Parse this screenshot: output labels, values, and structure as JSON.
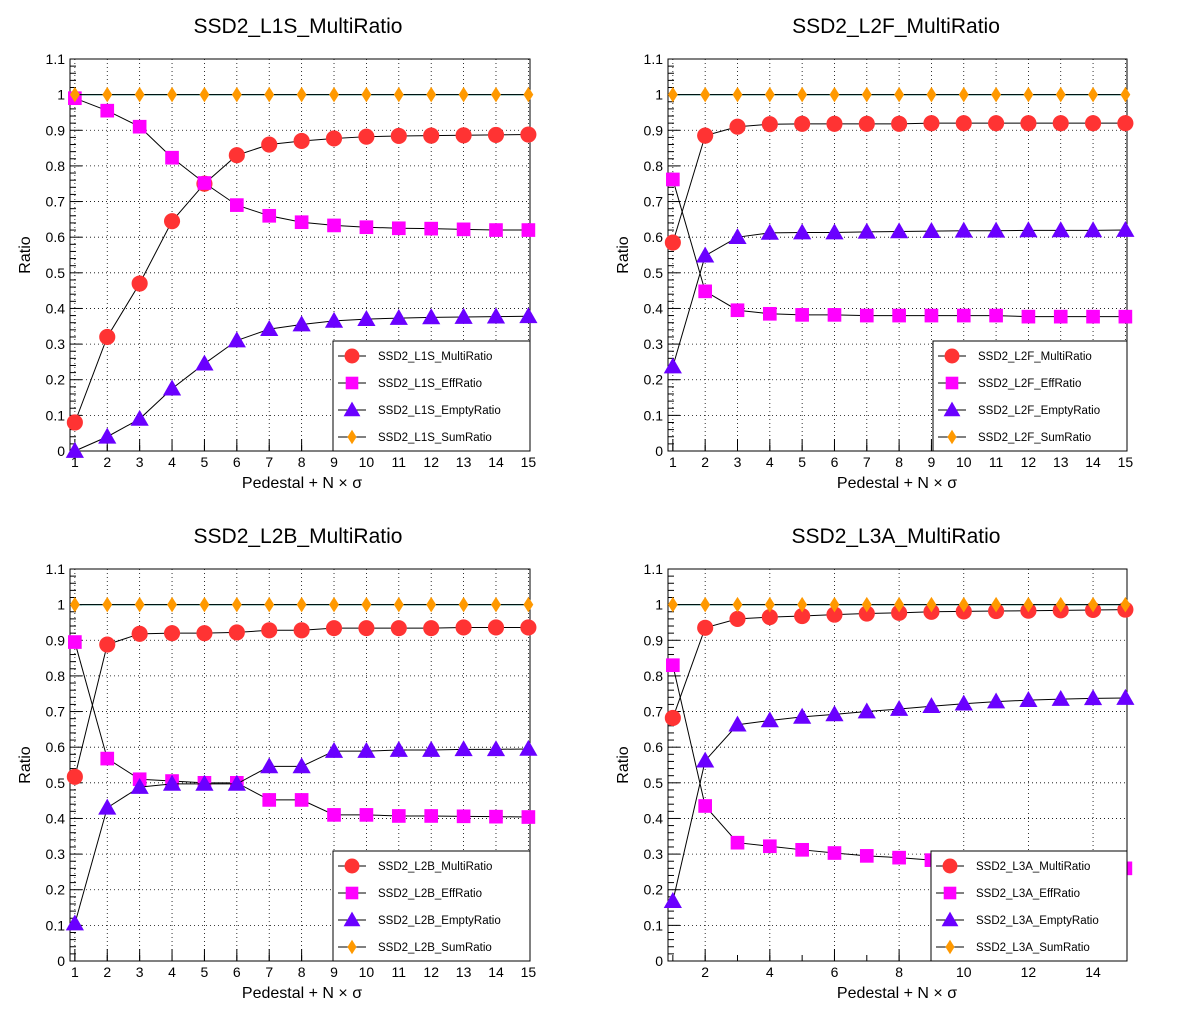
{
  "chart_data": [
    {
      "type": "line",
      "title": "SSD2_L1S_MultiRatio",
      "xlabel": "Pedestal + N × σ",
      "ylabel": "Ratio",
      "xlim": [
        0.85,
        15.05
      ],
      "ylim": [
        0,
        1.1
      ],
      "x_ticks": [
        "1",
        "2",
        "3",
        "4",
        "5",
        "6",
        "7",
        "8",
        "9",
        "10",
        "11",
        "12",
        "13",
        "14",
        "15"
      ],
      "y_ticks": [
        "0",
        "0.1",
        "0.2",
        "0.3",
        "0.4",
        "0.5",
        "0.6",
        "0.7",
        "0.8",
        "0.9",
        "1",
        "1.1"
      ],
      "grid": true,
      "legend_position": "bottom-right",
      "x": [
        1,
        2,
        3,
        4,
        5,
        6,
        7,
        8,
        9,
        10,
        11,
        12,
        13,
        14,
        15
      ],
      "series": [
        {
          "name": "SSD2_L1S_MultiRatio",
          "color": "#ff3333",
          "marker": "circle",
          "values": [
            0.08,
            0.32,
            0.47,
            0.645,
            0.75,
            0.83,
            0.86,
            0.87,
            0.877,
            0.882,
            0.884,
            0.885,
            0.886,
            0.887,
            0.888
          ]
        },
        {
          "name": "SSD2_L1S_EffRatio",
          "color": "#ff00ff",
          "marker": "square",
          "values": [
            0.99,
            0.955,
            0.91,
            0.823,
            0.752,
            0.69,
            0.66,
            0.642,
            0.633,
            0.628,
            0.625,
            0.624,
            0.622,
            0.62,
            0.62
          ]
        },
        {
          "name": "SSD2_L1S_EmptyRatio",
          "color": "#6a00ff",
          "marker": "triangle",
          "values": [
            0.0,
            0.04,
            0.09,
            0.175,
            0.245,
            0.31,
            0.342,
            0.355,
            0.365,
            0.37,
            0.373,
            0.375,
            0.376,
            0.377,
            0.378
          ]
        },
        {
          "name": "SSD2_L1S_SumRatio",
          "color": "#ff9900",
          "marker": "diamond",
          "values": [
            1,
            1,
            1,
            1,
            1,
            1,
            1,
            1,
            1,
            1,
            1,
            1,
            1,
            1,
            1
          ]
        }
      ]
    },
    {
      "type": "line",
      "title": "SSD2_L2F_MultiRatio",
      "xlabel": "Pedestal + N × σ",
      "ylabel": "Ratio",
      "xlim": [
        0.85,
        15.05
      ],
      "ylim": [
        0,
        1.1
      ],
      "x_ticks": [
        "1",
        "2",
        "3",
        "4",
        "5",
        "6",
        "7",
        "8",
        "9",
        "10",
        "11",
        "12",
        "13",
        "14",
        "15"
      ],
      "y_ticks": [
        "0",
        "0.1",
        "0.2",
        "0.3",
        "0.4",
        "0.5",
        "0.6",
        "0.7",
        "0.8",
        "0.9",
        "1",
        "1.1"
      ],
      "grid": true,
      "legend_position": "bottom-right",
      "x": [
        1,
        2,
        3,
        4,
        5,
        6,
        7,
        8,
        9,
        10,
        11,
        12,
        13,
        14,
        15
      ],
      "series": [
        {
          "name": "SSD2_L2F_MultiRatio",
          "color": "#ff3333",
          "marker": "circle",
          "values": [
            0.585,
            0.885,
            0.91,
            0.917,
            0.918,
            0.918,
            0.918,
            0.918,
            0.92,
            0.92,
            0.92,
            0.92,
            0.92,
            0.92,
            0.92
          ]
        },
        {
          "name": "SSD2_L2F_EffRatio",
          "color": "#ff00ff",
          "marker": "square",
          "values": [
            0.762,
            0.448,
            0.395,
            0.385,
            0.382,
            0.382,
            0.38,
            0.38,
            0.38,
            0.38,
            0.38,
            0.377,
            0.377,
            0.377,
            0.377
          ]
        },
        {
          "name": "SSD2_L2F_EmptyRatio",
          "color": "#6a00ff",
          "marker": "triangle",
          "values": [
            0.237,
            0.548,
            0.6,
            0.612,
            0.613,
            0.613,
            0.615,
            0.616,
            0.617,
            0.618,
            0.618,
            0.619,
            0.619,
            0.619,
            0.62
          ]
        },
        {
          "name": "SSD2_L2F_SumRatio",
          "color": "#ff9900",
          "marker": "diamond",
          "values": [
            1,
            1,
            1,
            1,
            1,
            1,
            1,
            1,
            1,
            1,
            1,
            1,
            1,
            1,
            1
          ]
        }
      ]
    },
    {
      "type": "line",
      "title": "SSD2_L2B_MultiRatio",
      "xlabel": "Pedestal + N × σ",
      "ylabel": "Ratio",
      "xlim": [
        0.85,
        15.05
      ],
      "ylim": [
        0,
        1.1
      ],
      "x_ticks": [
        "1",
        "2",
        "3",
        "4",
        "5",
        "6",
        "7",
        "8",
        "9",
        "10",
        "11",
        "12",
        "13",
        "14",
        "15"
      ],
      "y_ticks": [
        "0",
        "0.1",
        "0.2",
        "0.3",
        "0.4",
        "0.5",
        "0.6",
        "0.7",
        "0.8",
        "0.9",
        "1",
        "1.1"
      ],
      "grid": true,
      "legend_position": "bottom-right",
      "x": [
        1,
        2,
        3,
        4,
        5,
        6,
        7,
        8,
        9,
        10,
        11,
        12,
        13,
        14,
        15
      ],
      "series": [
        {
          "name": "SSD2_L2B_MultiRatio",
          "color": "#ff3333",
          "marker": "circle",
          "values": [
            0.517,
            0.888,
            0.918,
            0.92,
            0.92,
            0.922,
            0.928,
            0.928,
            0.934,
            0.934,
            0.934,
            0.934,
            0.936,
            0.936,
            0.936
          ]
        },
        {
          "name": "SSD2_L2B_EffRatio",
          "color": "#ff00ff",
          "marker": "square",
          "values": [
            0.895,
            0.568,
            0.51,
            0.505,
            0.5,
            0.5,
            0.452,
            0.452,
            0.41,
            0.41,
            0.407,
            0.407,
            0.406,
            0.405,
            0.404
          ]
        },
        {
          "name": "SSD2_L2B_EmptyRatio",
          "color": "#6a00ff",
          "marker": "triangle",
          "values": [
            0.105,
            0.43,
            0.488,
            0.497,
            0.497,
            0.497,
            0.546,
            0.546,
            0.589,
            0.589,
            0.592,
            0.592,
            0.594,
            0.594,
            0.595
          ]
        },
        {
          "name": "SSD2_L2B_SumRatio",
          "color": "#ff9900",
          "marker": "diamond",
          "values": [
            1,
            1,
            1,
            1,
            1,
            1,
            1,
            1,
            1,
            1,
            1,
            1,
            1,
            1,
            1
          ]
        }
      ]
    },
    {
      "type": "line",
      "title": "SSD2_L3A_MultiRatio",
      "xlabel": "Pedestal + N × σ",
      "ylabel": "Ratio",
      "xlim": [
        0.85,
        15.05
      ],
      "ylim": [
        0,
        1.1
      ],
      "x_ticks": [
        "2",
        "4",
        "6",
        "8",
        "10",
        "12",
        "14"
      ],
      "y_ticks": [
        "0",
        "0.1",
        "0.2",
        "0.3",
        "0.4",
        "0.5",
        "0.6",
        "0.7",
        "0.8",
        "0.9",
        "1",
        "1.1"
      ],
      "grid": true,
      "legend_position": "bottom-right",
      "x": [
        1,
        2,
        3,
        4,
        5,
        6,
        7,
        8,
        9,
        10,
        11,
        12,
        13,
        14,
        15
      ],
      "series": [
        {
          "name": "SSD2_L3A_MultiRatio",
          "color": "#ff3333",
          "marker": "circle",
          "values": [
            0.682,
            0.935,
            0.96,
            0.965,
            0.968,
            0.972,
            0.975,
            0.977,
            0.98,
            0.981,
            0.982,
            0.983,
            0.984,
            0.985,
            0.986
          ]
        },
        {
          "name": "SSD2_L3A_EffRatio",
          "color": "#ff00ff",
          "marker": "square",
          "values": [
            0.83,
            0.435,
            0.332,
            0.322,
            0.312,
            0.303,
            0.295,
            0.29,
            0.283,
            0.278,
            0.275,
            0.272,
            0.268,
            0.265,
            0.26
          ]
        },
        {
          "name": "SSD2_L3A_EmptyRatio",
          "color": "#6a00ff",
          "marker": "triangle",
          "values": [
            0.168,
            0.562,
            0.663,
            0.675,
            0.685,
            0.692,
            0.7,
            0.707,
            0.715,
            0.722,
            0.728,
            0.732,
            0.735,
            0.737,
            0.738
          ]
        },
        {
          "name": "SSD2_L3A_SumRatio",
          "color": "#ff9900",
          "marker": "diamond",
          "values": [
            1,
            1,
            1,
            1,
            1,
            1,
            1,
            1,
            1,
            1,
            1,
            1,
            1,
            1,
            1
          ]
        }
      ]
    }
  ]
}
